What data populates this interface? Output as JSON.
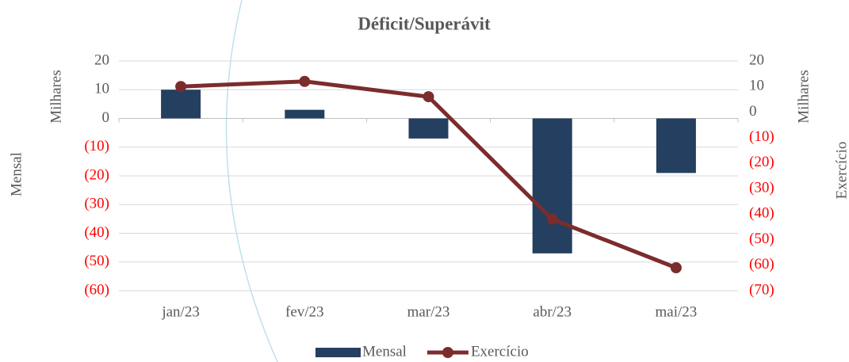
{
  "chart_data": {
    "type": "bar_line",
    "title": "Déficit/Superávit",
    "categories": [
      "jan/23",
      "fev/23",
      "mar/23",
      "abr/23",
      "mai/23"
    ],
    "series": [
      {
        "name": "Mensal",
        "type": "bar",
        "color": "#243f60",
        "values": [
          10,
          3,
          -7,
          -47,
          -19
        ]
      },
      {
        "name": "Exercício",
        "type": "line",
        "axis": "y2",
        "color": "#7b2c2c",
        "values": [
          10,
          12,
          6,
          -42,
          -61
        ]
      }
    ],
    "y_label": "Mensal",
    "y_unit_label": "Milhares",
    "y2_label": "Exercício",
    "y2_unit_label": "Milhares",
    "ylim": [
      -60,
      20
    ],
    "yticks": [
      {
        "value": -60,
        "label": "(60)"
      },
      {
        "value": -50,
        "label": "(50)"
      },
      {
        "value": -40,
        "label": "(40)"
      },
      {
        "value": -30,
        "label": "(30)"
      },
      {
        "value": -20,
        "label": "(20)"
      },
      {
        "value": -10,
        "label": "(10)"
      },
      0,
      10,
      20
    ],
    "y2lim": [
      -70,
      20
    ],
    "y2ticks": [
      {
        "value": -70,
        "label": "(70)"
      },
      {
        "value": -60,
        "label": "(60)"
      },
      {
        "value": -50,
        "label": "(50)"
      },
      {
        "value": -40,
        "label": "(40)"
      },
      {
        "value": -30,
        "label": "(30)"
      },
      {
        "value": -20,
        "label": "(20)"
      },
      {
        "value": -10,
        "label": "(10)"
      },
      0,
      10,
      20
    ],
    "grid": true,
    "negative_label_color": "#ff0000",
    "legend": "bottom"
  }
}
